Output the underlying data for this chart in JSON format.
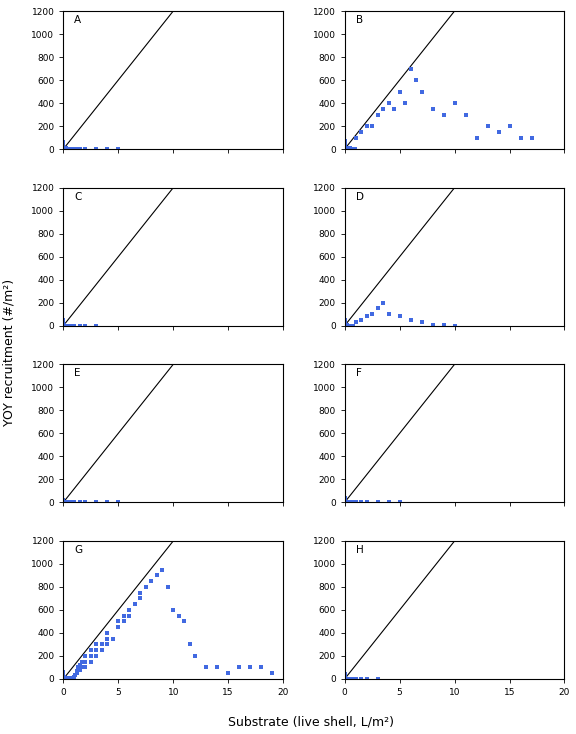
{
  "panels": [
    "A",
    "B",
    "C",
    "D",
    "E",
    "F",
    "G",
    "H"
  ],
  "xlim": [
    0,
    20
  ],
  "ylim": [
    0,
    1200
  ],
  "xticks": [
    0,
    5,
    10,
    15,
    20
  ],
  "yticks": [
    0,
    200,
    400,
    600,
    800,
    1000,
    1200
  ],
  "line_x": [
    0,
    10
  ],
  "line_y": [
    0,
    1200
  ],
  "marker_color": "#4169E1",
  "marker_size": 9,
  "xlabel": "Substrate (live shell, L/m²)",
  "ylabel": "YOY recruitment (#/m²)",
  "figsize": [
    5.76,
    7.34
  ],
  "dpi": 100,
  "data": {
    "A": {
      "x": [
        0.0,
        0.0,
        0.0,
        0.0,
        0.0,
        0.0,
        0.0,
        0.0,
        0.0,
        0.0,
        0.05,
        0.05,
        0.05,
        0.1,
        0.1,
        0.1,
        0.15,
        0.15,
        0.2,
        0.2,
        0.25,
        0.3,
        0.35,
        0.4,
        0.5,
        0.6,
        0.7,
        0.8,
        0.9,
        1.0,
        1.1,
        1.2,
        1.5,
        2.0,
        3.0,
        4.0,
        5.0
      ],
      "y": [
        0,
        5,
        10,
        15,
        20,
        25,
        30,
        40,
        50,
        60,
        0,
        5,
        10,
        0,
        5,
        10,
        0,
        5,
        0,
        5,
        0,
        0,
        0,
        0,
        0,
        0,
        0,
        0,
        0,
        0,
        0,
        0,
        0,
        0,
        0,
        0,
        0
      ]
    },
    "B": {
      "x": [
        0.0,
        0.0,
        0.0,
        0.0,
        0.0,
        0.0,
        0.0,
        0.0,
        0.0,
        0.0,
        0.0,
        0.05,
        0.05,
        0.05,
        0.1,
        0.1,
        0.15,
        0.2,
        0.2,
        0.25,
        0.3,
        0.3,
        0.4,
        0.4,
        0.5,
        0.5,
        0.6,
        0.7,
        0.8,
        0.9,
        1.0,
        1.5,
        2.0,
        2.5,
        3.0,
        3.5,
        4.0,
        4.5,
        5.0,
        5.5,
        6.0,
        6.5,
        7.0,
        8.0,
        9.0,
        10.0,
        11.0,
        12.0,
        13.0,
        14.0,
        15.0,
        16.0,
        17.0
      ],
      "y": [
        0,
        5,
        10,
        15,
        20,
        25,
        30,
        40,
        50,
        60,
        70,
        0,
        5,
        10,
        0,
        5,
        0,
        0,
        10,
        0,
        0,
        10,
        0,
        5,
        0,
        10,
        0,
        0,
        0,
        0,
        100,
        150,
        200,
        200,
        300,
        350,
        400,
        350,
        500,
        400,
        700,
        600,
        500,
        350,
        300,
        400,
        300,
        100,
        200,
        150,
        200,
        100,
        100
      ]
    },
    "C": {
      "x": [
        0.0,
        0.0,
        0.0,
        0.0,
        0.0,
        0.0,
        0.0,
        0.0,
        0.05,
        0.05,
        0.1,
        0.1,
        0.15,
        0.2,
        0.25,
        0.3,
        0.4,
        0.5,
        0.6,
        0.7,
        0.8,
        1.0,
        1.5,
        2.0,
        3.0
      ],
      "y": [
        0,
        5,
        10,
        15,
        20,
        30,
        40,
        50,
        0,
        5,
        0,
        5,
        0,
        0,
        0,
        0,
        0,
        0,
        0,
        0,
        0,
        0,
        0,
        0,
        0
      ]
    },
    "D": {
      "x": [
        0.0,
        0.0,
        0.0,
        0.0,
        0.0,
        0.0,
        0.0,
        0.0,
        0.0,
        0.05,
        0.05,
        0.1,
        0.1,
        0.15,
        0.2,
        0.25,
        0.3,
        0.4,
        0.5,
        0.6,
        0.7,
        0.8,
        1.0,
        1.5,
        2.0,
        2.5,
        3.0,
        3.5,
        4.0,
        5.0,
        6.0,
        7.0,
        8.0,
        9.0,
        10.0
      ],
      "y": [
        0,
        5,
        10,
        15,
        20,
        25,
        30,
        40,
        50,
        0,
        5,
        0,
        5,
        0,
        0,
        5,
        0,
        0,
        0,
        0,
        0,
        0,
        30,
        50,
        80,
        100,
        150,
        200,
        100,
        80,
        50,
        30,
        10,
        5,
        0
      ]
    },
    "E": {
      "x": [
        0.0,
        0.0,
        0.0,
        0.0,
        0.0,
        0.05,
        0.05,
        0.1,
        0.15,
        0.2,
        0.3,
        0.4,
        0.5,
        0.7,
        1.0,
        1.5,
        2.0,
        3.0,
        4.0,
        5.0
      ],
      "y": [
        0,
        5,
        10,
        15,
        20,
        0,
        5,
        0,
        0,
        0,
        0,
        0,
        0,
        0,
        0,
        0,
        0,
        0,
        0,
        0
      ]
    },
    "F": {
      "x": [
        0.0,
        0.0,
        0.0,
        0.0,
        0.0,
        0.0,
        0.05,
        0.1,
        0.15,
        0.2,
        0.3,
        0.5,
        0.7,
        1.0,
        1.5,
        2.0,
        3.0,
        4.0,
        5.0
      ],
      "y": [
        0,
        5,
        10,
        20,
        30,
        40,
        0,
        0,
        0,
        0,
        0,
        0,
        0,
        0,
        0,
        0,
        0,
        0,
        0
      ]
    },
    "G": {
      "x": [
        0.0,
        0.0,
        0.0,
        0.0,
        0.0,
        0.0,
        0.0,
        0.0,
        0.0,
        0.0,
        0.05,
        0.05,
        0.05,
        0.05,
        0.1,
        0.1,
        0.1,
        0.15,
        0.15,
        0.2,
        0.2,
        0.2,
        0.25,
        0.3,
        0.3,
        0.3,
        0.35,
        0.4,
        0.4,
        0.45,
        0.5,
        0.5,
        0.5,
        0.6,
        0.6,
        0.7,
        0.7,
        0.7,
        0.8,
        0.8,
        0.9,
        0.9,
        1.0,
        1.0,
        1.0,
        1.0,
        1.1,
        1.2,
        1.2,
        1.3,
        1.3,
        1.5,
        1.5,
        1.7,
        1.7,
        2.0,
        2.0,
        2.0,
        2.5,
        2.5,
        2.5,
        3.0,
        3.0,
        3.0,
        3.5,
        3.5,
        4.0,
        4.0,
        4.0,
        4.5,
        5.0,
        5.0,
        5.5,
        5.5,
        6.0,
        6.0,
        6.5,
        7.0,
        7.0,
        7.5,
        8.0,
        8.5,
        9.0,
        9.5,
        10.0,
        10.5,
        11.0,
        11.5,
        12.0,
        13.0,
        14.0,
        15.0,
        16.0,
        17.0,
        18.0,
        19.0
      ],
      "y": [
        0,
        5,
        10,
        15,
        20,
        25,
        30,
        40,
        50,
        60,
        0,
        5,
        10,
        15,
        0,
        5,
        10,
        0,
        5,
        0,
        5,
        10,
        0,
        0,
        5,
        10,
        0,
        0,
        5,
        0,
        0,
        5,
        10,
        0,
        5,
        0,
        5,
        10,
        0,
        5,
        0,
        5,
        0,
        5,
        10,
        20,
        30,
        50,
        70,
        80,
        100,
        80,
        120,
        100,
        150,
        100,
        150,
        200,
        150,
        200,
        250,
        200,
        250,
        300,
        250,
        300,
        300,
        350,
        400,
        350,
        450,
        500,
        500,
        550,
        550,
        600,
        650,
        700,
        750,
        800,
        850,
        900,
        950,
        800,
        600,
        550,
        500,
        300,
        200,
        100,
        100,
        50,
        100,
        100,
        100,
        50
      ]
    },
    "H": {
      "x": [
        0.0,
        0.0,
        0.0,
        0.0,
        0.0,
        0.0,
        0.0,
        0.0,
        0.05,
        0.1,
        0.15,
        0.2,
        0.3,
        0.5,
        0.7,
        1.0,
        1.5,
        2.0,
        3.0
      ],
      "y": [
        0,
        5,
        10,
        15,
        20,
        25,
        30,
        40,
        0,
        0,
        0,
        0,
        0,
        0,
        0,
        0,
        0,
        0,
        0
      ]
    }
  }
}
